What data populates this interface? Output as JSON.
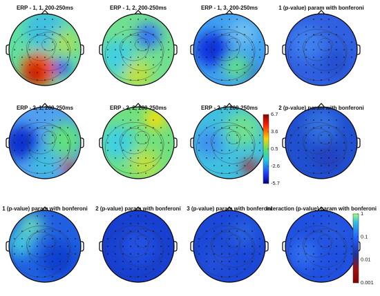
{
  "panels": [
    {
      "title": "ERP - 1, 1, 200-250ms"
    },
    {
      "title": "ERP - 1, 2, 200-250ms"
    },
    {
      "title": "ERP - 1, 3, 200-250ms"
    },
    {
      "title": "1 (p-value) param with bonferoni"
    },
    {
      "title": "ERP - 2, 1, 200-250ms"
    },
    {
      "title": "ERP - 2, 2, 200-250ms"
    },
    {
      "title": "ERP - 2, 3, 200-250ms"
    },
    {
      "title": "2 (p-value) param with bonferoni"
    },
    {
      "title": "1 (p-value) param with bonferoni"
    },
    {
      "title": "2 (p-value) param with bonferoni"
    },
    {
      "title": "3 (p-value) param with bonferoni"
    },
    {
      "title": "Interaction (p-value) param with bonferoni"
    }
  ],
  "colorbars": [
    {
      "ticks": [
        6.7,
        3.6,
        0.5,
        -2.6,
        -5.7
      ]
    },
    {
      "ticks": [
        1,
        0.1,
        0.01,
        0.001
      ]
    }
  ]
}
